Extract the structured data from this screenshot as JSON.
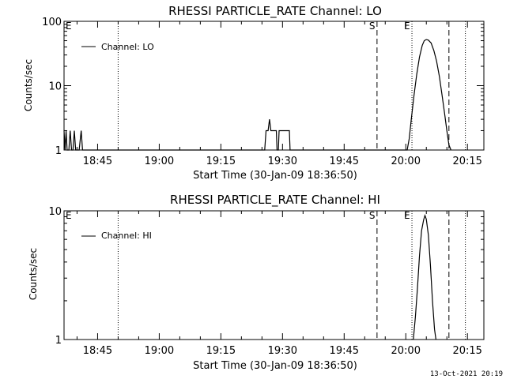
{
  "footer_timestamp": "13-Oct-2021 20:19",
  "chart_data": [
    {
      "type": "line",
      "title": "RHESSI PARTICLE_RATE Channel: LO",
      "xlabel": "Start Time (30-Jan-09 18:36:50)",
      "ylabel": "Counts/sec",
      "y_scale": "log",
      "ylim": [
        1,
        100
      ],
      "y_ticks": [
        {
          "value": 1,
          "label": "1"
        },
        {
          "value": 10,
          "label": "10"
        },
        {
          "value": 100,
          "label": "100"
        }
      ],
      "xlim": [
        "18:36:50",
        "20:19:00"
      ],
      "x_ticks": [
        "18:45",
        "19:00",
        "19:15",
        "19:30",
        "19:45",
        "20:00",
        "20:15"
      ],
      "legend": {
        "position": "top-left",
        "entries": [
          "Channel: LO"
        ]
      },
      "markers": [
        {
          "label": "E",
          "time": "18:36:50",
          "style": "none"
        },
        {
          "label": "",
          "time": "18:50:00",
          "style": "dotted"
        },
        {
          "label": "S",
          "time": "19:53:00",
          "style": "dashed"
        },
        {
          "label": "E",
          "time": "20:01:30",
          "style": "dotted"
        },
        {
          "label": "",
          "time": "20:10:30",
          "style": "dashed"
        },
        {
          "label": "",
          "time": "20:14:30",
          "style": "dotted"
        }
      ],
      "series": [
        {
          "name": "Channel: LO",
          "points": [
            [
              "18:36:50",
              2
            ],
            [
              "18:37:05",
              1
            ],
            [
              "18:37:20",
              2
            ],
            [
              "18:37:35",
              1
            ],
            [
              "18:38:00",
              1
            ],
            [
              "18:38:20",
              2
            ],
            [
              "18:38:40",
              1
            ],
            [
              "18:39:00",
              1
            ],
            [
              "18:39:20",
              2
            ],
            [
              "18:39:40",
              1
            ],
            [
              "18:40:20",
              1
            ],
            [
              "18:40:30",
              1
            ],
            [
              "18:41:00",
              2
            ],
            [
              "18:41:20",
              1
            ],
            [
              "19:25:40",
              1
            ],
            [
              "19:26:00",
              2
            ],
            [
              "19:26:30",
              2
            ],
            [
              "19:26:50",
              3
            ],
            [
              "19:27:10",
              2
            ],
            [
              "19:28:30",
              2
            ],
            [
              "19:28:40",
              1
            ],
            [
              "19:29:00",
              1
            ],
            [
              "19:29:10",
              2
            ],
            [
              "19:31:40",
              2
            ],
            [
              "19:31:50",
              1
            ],
            [
              "19:32:30",
              1
            ],
            [
              "20:00:20",
              1
            ],
            [
              "20:00:50",
              1.5
            ],
            [
              "20:01:20",
              3
            ],
            [
              "20:02:00",
              7
            ],
            [
              "20:02:40",
              15
            ],
            [
              "20:03:20",
              28
            ],
            [
              "20:04:00",
              42
            ],
            [
              "20:04:30",
              50
            ],
            [
              "20:05:00",
              52
            ],
            [
              "20:05:30",
              51
            ],
            [
              "20:06:10",
              46
            ],
            [
              "20:06:50",
              35
            ],
            [
              "20:07:30",
              24
            ],
            [
              "20:08:10",
              14
            ],
            [
              "20:08:50",
              7
            ],
            [
              "20:09:30",
              3.5
            ],
            [
              "20:10:00",
              2
            ],
            [
              "20:10:30",
              1.2
            ],
            [
              "20:11:00",
              1
            ]
          ]
        }
      ]
    },
    {
      "type": "line",
      "title": "RHESSI PARTICLE_RATE Channel: HI",
      "xlabel": "Start Time (30-Jan-09 18:36:50)",
      "ylabel": "Counts/sec",
      "y_scale": "log",
      "ylim": [
        1,
        10
      ],
      "y_ticks": [
        {
          "value": 1,
          "label": "1"
        },
        {
          "value": 10,
          "label": "10"
        }
      ],
      "xlim": [
        "18:36:50",
        "20:19:00"
      ],
      "x_ticks": [
        "18:45",
        "19:00",
        "19:15",
        "19:30",
        "19:45",
        "20:00",
        "20:15"
      ],
      "legend": {
        "position": "top-left",
        "entries": [
          "Channel: HI"
        ]
      },
      "markers": [
        {
          "label": "E",
          "time": "18:36:50",
          "style": "none"
        },
        {
          "label": "",
          "time": "18:50:00",
          "style": "dotted"
        },
        {
          "label": "S",
          "time": "19:53:00",
          "style": "dashed"
        },
        {
          "label": "E",
          "time": "20:01:30",
          "style": "dotted"
        },
        {
          "label": "",
          "time": "20:10:30",
          "style": "dashed"
        },
        {
          "label": "",
          "time": "20:14:30",
          "style": "dotted"
        }
      ],
      "series": [
        {
          "name": "Channel: HI",
          "points": [
            [
              "20:01:50",
              1
            ],
            [
              "20:02:20",
              1.5
            ],
            [
              "20:02:50",
              2.5
            ],
            [
              "20:03:20",
              4.5
            ],
            [
              "20:03:50",
              7
            ],
            [
              "20:04:20",
              8.5
            ],
            [
              "20:04:40",
              9.2
            ],
            [
              "20:05:00",
              8.6
            ],
            [
              "20:05:30",
              6.5
            ],
            [
              "20:06:00",
              3.8
            ],
            [
              "20:06:30",
              2
            ],
            [
              "20:07:00",
              1.2
            ],
            [
              "20:07:20",
              1
            ]
          ]
        }
      ]
    }
  ]
}
